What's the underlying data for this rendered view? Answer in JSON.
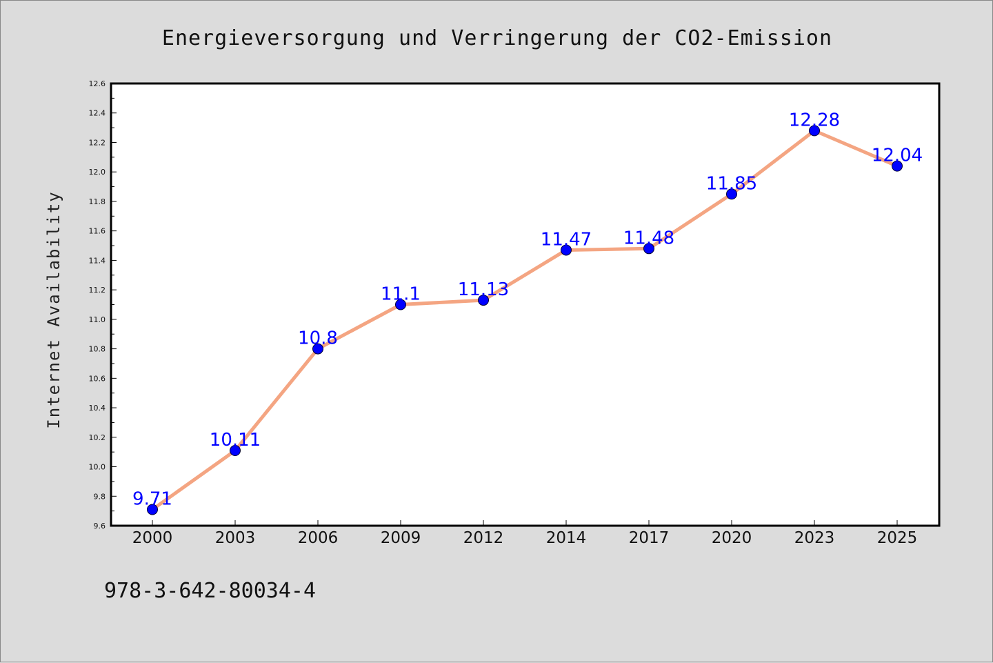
{
  "chart_data": {
    "type": "line",
    "title": "Energieversorgung und Verringerung der CO2-Emission",
    "xlabel": "",
    "ylabel": "Internet Availability",
    "categories": [
      "2000",
      "2003",
      "2006",
      "2009",
      "2012",
      "2014",
      "2017",
      "2020",
      "2023",
      "2025"
    ],
    "series": [
      {
        "values": [
          9.71,
          10.11,
          10.8,
          11.1,
          11.13,
          11.47,
          11.48,
          11.85,
          12.28,
          12.04
        ],
        "labels": [
          "9.71",
          "10.11",
          "10.8",
          "11.1",
          "11.13",
          "11.47",
          "11.48",
          "11.85",
          "12.28",
          "12.04"
        ],
        "line_color": "#f4a582",
        "marker_color": "#0000ff",
        "label_color": "#0000ff"
      }
    ],
    "ylim": [
      9.6,
      12.6
    ],
    "yticks": [
      "9.6",
      "9.8",
      "10.0",
      "10.2",
      "10.4",
      "10.6",
      "10.8",
      "11.0",
      "11.2",
      "11.4",
      "11.6",
      "11.8",
      "12.0",
      "12.2",
      "12.4",
      "12.6"
    ],
    "grid": false,
    "legend": "none"
  },
  "footer": {
    "isbn": "978-3-642-80034-4"
  }
}
